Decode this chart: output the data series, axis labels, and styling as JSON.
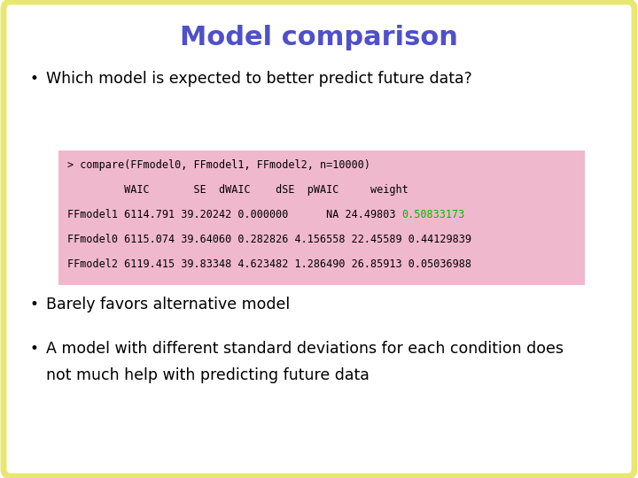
{
  "title": "Model comparison",
  "title_color": "#5050c8",
  "title_fontsize": 22,
  "background_color": "#ffffff",
  "border_color": "#e8e870",
  "border_linewidth": 5,
  "bullet1": "Which model is expected to better predict future data?",
  "code_box_bg": "#f0b8cc",
  "code_line1": "> compare(FFmodel0, FFmodel1, FFmodel2, n=10000)",
  "code_line2": "         WAIC       SE  dWAIC    dSE  pWAIC     weight",
  "code_line3_prefix": "FFmodel1 6114.791 39.20242 0.000000      NA 24.49803 ",
  "code_line3_highlight": "0.50833173",
  "code_line3_highlight_color": "#00bb00",
  "code_line4": "FFmodel0 6115.074 39.64060 0.282826 4.156558 22.45589 0.44129839",
  "code_line5": "FFmodel2 6119.415 39.83348 4.623482 1.286490 26.85913 0.05036988",
  "code_fontsize": 8.5,
  "bullet2": "Barely favors alternative model",
  "bullet3a": "A model with different standard deviations for each condition does",
  "bullet3b": "not much help with predicting future data",
  "bullet_fontsize": 12.5,
  "bullet_color": "#000000",
  "code_text_color": "#000000",
  "bullet_dot_fontsize": 12
}
